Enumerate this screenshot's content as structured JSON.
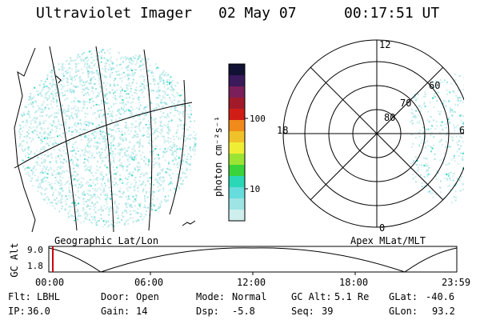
{
  "header": {
    "title": "Ultraviolet Imager",
    "date": "02 May 07",
    "time": "00:17:51 UT"
  },
  "colorbar": {
    "label": "photon cm⁻²s⁻¹",
    "ticks": [
      "100",
      "10"
    ],
    "colors": [
      "#111133",
      "#3a1a5a",
      "#7a1f5a",
      "#a01a2a",
      "#d01e16",
      "#f08a1a",
      "#f0c22a",
      "#f0ee34",
      "#9ce434",
      "#3ad43a",
      "#2ad8b8",
      "#66dcdc",
      "#9ee4e4",
      "#cfeeee"
    ]
  },
  "left_panel": {
    "caption": "Geographic Lat/Lon"
  },
  "right_panel": {
    "caption": "Apex MLat/MLT",
    "mlt_labels": {
      "top": "12",
      "bottom": "0",
      "left": "18",
      "right": "6"
    },
    "lat_labels": [
      "80",
      "70",
      "60"
    ]
  },
  "timeline": {
    "axis_label": "GC Alt",
    "y_ticks": [
      "9.0",
      "1.8"
    ],
    "x_ticks": [
      "00:00",
      "06:00",
      "12:00",
      "18:00",
      "23:59"
    ],
    "marker_color": "#cc0000"
  },
  "info": {
    "row1": [
      {
        "label": "Flt:",
        "value": "LBHL"
      },
      {
        "label": "Door:",
        "value": "Open"
      },
      {
        "label": "Mode:",
        "value": "Normal"
      },
      {
        "label": "GC Alt:",
        "value": "5.1 Re"
      },
      {
        "label": "GLat:",
        "value": "-40.6"
      }
    ],
    "row2": [
      {
        "label": "IP:",
        "value": "36.0"
      },
      {
        "label": "Gain:",
        "value": "14"
      },
      {
        "label": "Dsp:",
        "value": "-5.8"
      },
      {
        "label": "Seq:",
        "value": "39"
      },
      {
        "label": "GLon:",
        "value": "93.2"
      }
    ]
  }
}
